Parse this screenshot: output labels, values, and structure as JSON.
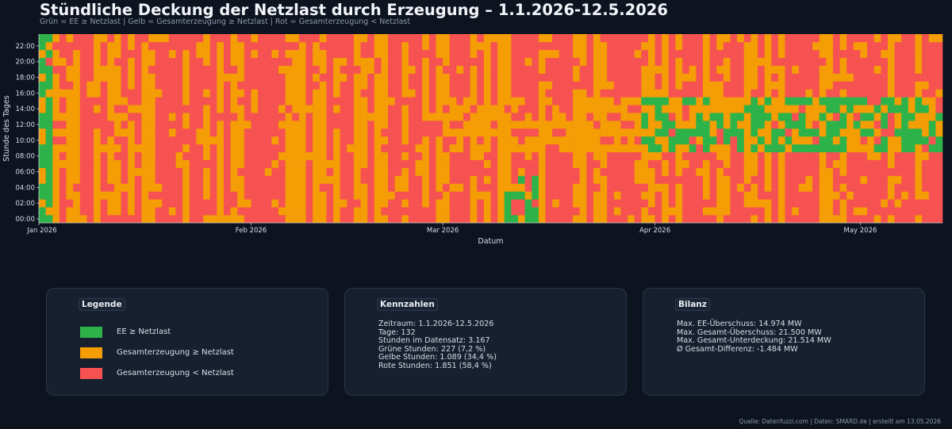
{
  "title": "Stündliche Deckung der Netzlast durch Erzeugung – 1.1.2026-12.5.2026",
  "subtitle": "Grün = EE ≥ Netzlast | Gelb = Gesamterzeugung ≥ Netzlast | Rot = Gesamterzeugung < Netzlast",
  "colors": {
    "green": "#2db34a",
    "yellow": "#f59d05",
    "red": "#f75252",
    "background": "#0d1420"
  },
  "chart_data": {
    "type": "heatmap",
    "xlabel": "Datum",
    "ylabel": "Stunde des Tages",
    "x_ticks": [
      "Jan 2026",
      "Feb 2026",
      "Mar 2026",
      "Apr 2026",
      "May 2026"
    ],
    "y_ticks": [
      "00:00",
      "02:00",
      "04:00",
      "06:00",
      "08:00",
      "10:00",
      "12:00",
      "14:00",
      "16:00",
      "18:00",
      "20:00",
      "22:00"
    ],
    "days": 132,
    "hours": 24,
    "category_codes": {
      "0": "Gesamterzeugung < Netzlast",
      "1": "Gesamterzeugung ≥ Netzlast",
      "2": "EE ≥ Netzlast"
    },
    "grid": false,
    "approximate": true
  },
  "legend": {
    "title": "Legende",
    "items": [
      {
        "label": "EE ≥ Netzlast",
        "color": "#2db34a"
      },
      {
        "label": "Gesamterzeugung ≥ Netzlast",
        "color": "#f59d05"
      },
      {
        "label": "Gesamterzeugung < Netzlast",
        "color": "#f75252"
      }
    ]
  },
  "stats": {
    "title": "Kennzahlen",
    "lines": [
      "Zeitraum: 1.1.2026-12.5.2026",
      "Tage: 132",
      "Stunden im Datensatz: 3.167",
      "Grüne Stunden: 227 (7,2 %)",
      "Gelbe Stunden: 1.089 (34,4 %)",
      "Rote Stunden: 1.851 (58,4 %)"
    ]
  },
  "balance": {
    "title": "Bilanz",
    "lines": [
      "Max. EE-Überschuss: 14.974 MW",
      "Max. Gesamt-Überschuss: 21.500 MW",
      "Max. Gesamt-Unterdeckung: 21.514 MW",
      "Ø Gesamt-Differenz: -1.484 MW"
    ]
  },
  "footer": "Quelle: Datenfuzzi.com | Daten: SMARD.de | erstellt am 13.05.2026"
}
